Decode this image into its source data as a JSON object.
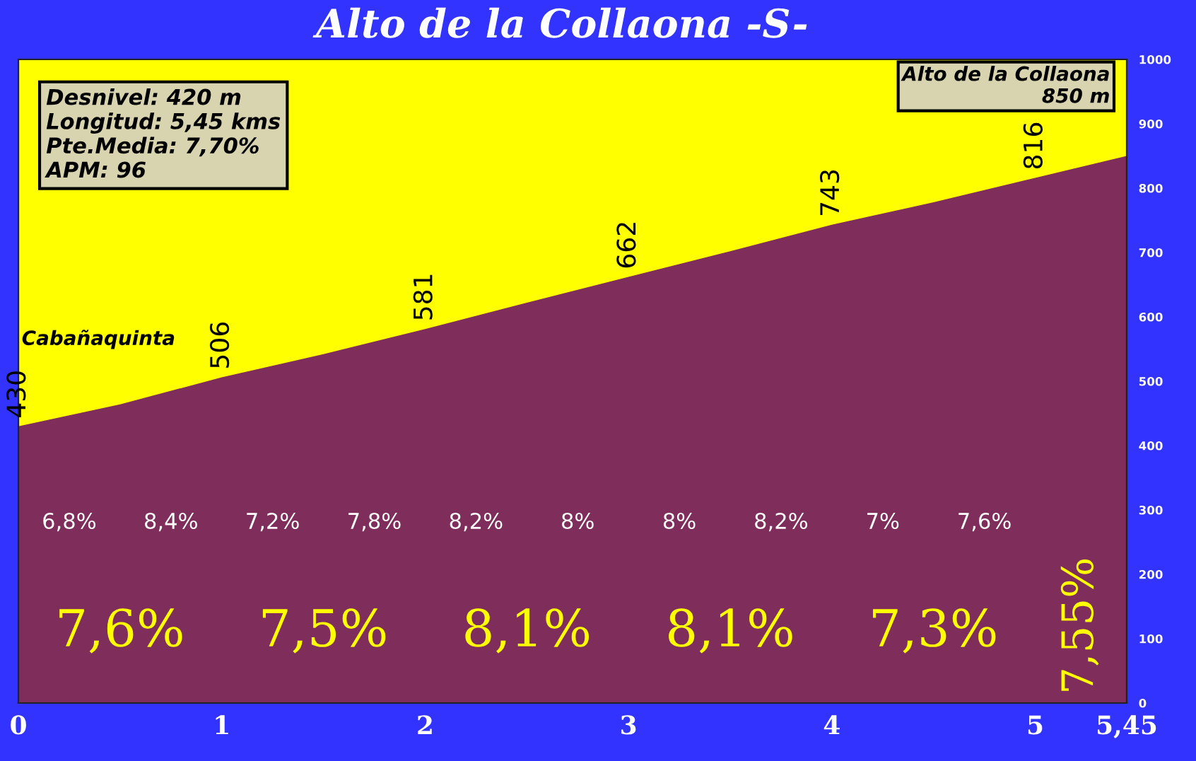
{
  "chart_data": {
    "type": "area",
    "title": "Alto de la Collaona -S-",
    "x": [
      0,
      0.5,
      1,
      1.5,
      2,
      2.5,
      3,
      3.5,
      4,
      4.5,
      5,
      5.45
    ],
    "values": [
      430,
      464,
      506,
      542,
      581,
      622,
      662,
      702,
      743,
      778,
      816,
      850
    ],
    "value_labels": [
      "430",
      null,
      "506",
      null,
      "581",
      null,
      "662",
      null,
      "743",
      null,
      "816",
      null
    ],
    "color": "#7f2d5a",
    "xlim": [
      0,
      5.45
    ],
    "ylim": [
      0,
      1000
    ],
    "xticks": [
      0,
      1,
      2,
      3,
      4,
      5,
      {
        "value": 5.45,
        "label": "5,45"
      }
    ],
    "yticks": [
      0,
      100,
      200,
      300,
      400,
      500,
      600,
      700,
      800,
      900,
      1000
    ],
    "grid": false,
    "legend": false,
    "annotations": [
      "Desnivel: 420 m",
      "Longitud: 5,45 kms",
      "Pte.Media: 7,70%",
      "APM: 96",
      "Cabañaquinta",
      "Alto de la Collaona\n850 m",
      "6,8%",
      "8,4%",
      "7,2%",
      "7,8%",
      "8,2%",
      "8%",
      "8%",
      "8,2%",
      "7%",
      "7,6%",
      "7,6%",
      "7,5%",
      "8,1%",
      "8,1%",
      "7,3%",
      "7,55%"
    ]
  }
}
